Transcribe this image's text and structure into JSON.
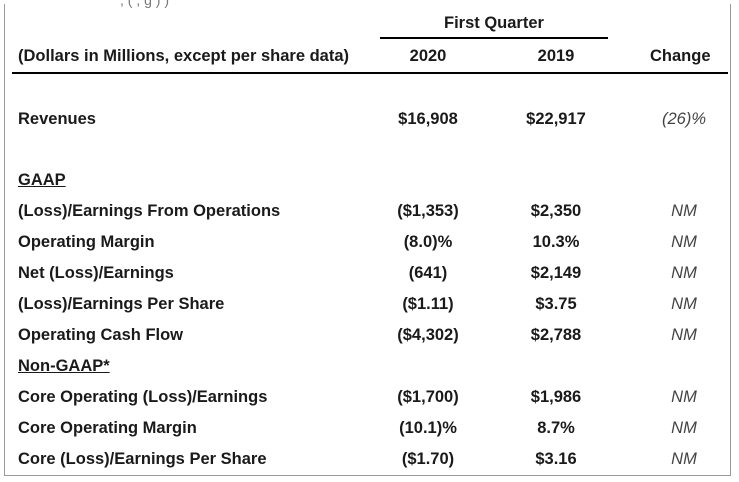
{
  "header": {
    "clipped_text": "                 , (                   ,             g       )                   )",
    "group_label": "First Quarter",
    "units_label": "(Dollars in Millions, except per share data)",
    "col_2020": "2020",
    "col_2019": "2019",
    "col_change": "Change"
  },
  "revenues": {
    "label": "Revenues",
    "v2020": "$16,908",
    "v2019": "$22,917",
    "change": "(26)%"
  },
  "gaap": {
    "heading": "GAAP",
    "rows": [
      {
        "label": "(Loss)/Earnings From Operations",
        "v2020": "($1,353)",
        "v2019": "$2,350",
        "change": "NM"
      },
      {
        "label": "Operating Margin",
        "v2020": "(8.0)%",
        "v2019": "10.3%",
        "change": "NM"
      },
      {
        "label": "Net (Loss)/Earnings",
        "v2020": "(641)",
        "v2019": "$2,149",
        "change": "NM"
      },
      {
        "label": "(Loss)/Earnings Per Share",
        "v2020": "($1.11)",
        "v2019": "$3.75",
        "change": "NM"
      },
      {
        "label": "Operating Cash Flow",
        "v2020": "($4,302)",
        "v2019": "$2,788",
        "change": "NM"
      }
    ]
  },
  "non_gaap": {
    "heading": "Non-GAAP*",
    "rows": [
      {
        "label": "Core Operating (Loss)/Earnings",
        "v2020": "($1,700)",
        "v2019": "$1,986",
        "change": "NM"
      },
      {
        "label": "Core Operating Margin",
        "v2020": "(10.1)%",
        "v2019": "8.7%",
        "change": "NM"
      },
      {
        "label": "Core (Loss)/Earnings Per Share",
        "v2020": "($1.70)",
        "v2019": "$3.16",
        "change": "NM"
      }
    ]
  }
}
